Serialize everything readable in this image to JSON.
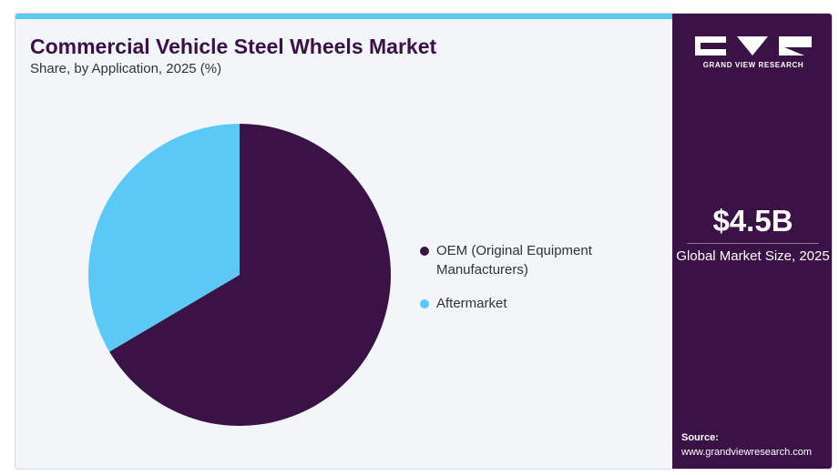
{
  "header": {
    "title": "Commercial Vehicle Steel Wheels Market",
    "subtitle": "Share, by Application, 2025 (%)"
  },
  "chart_data": {
    "type": "pie",
    "categories": [
      "OEM (Original Equipment Manufacturers)",
      "Aftermarket"
    ],
    "values": [
      66.5,
      33.5
    ],
    "colors": [
      "#3a1245",
      "#5bc8f5"
    ],
    "start_angle_deg": 0,
    "direction": "clockwise",
    "legend": "right"
  },
  "sidebar": {
    "logo_text": "GRAND VIEW RESEARCH",
    "market_size_value": "$4.5B",
    "market_size_label": "Global Market Size, 2025",
    "source_title": "Source:",
    "source_url": "www.grandviewresearch.com"
  }
}
